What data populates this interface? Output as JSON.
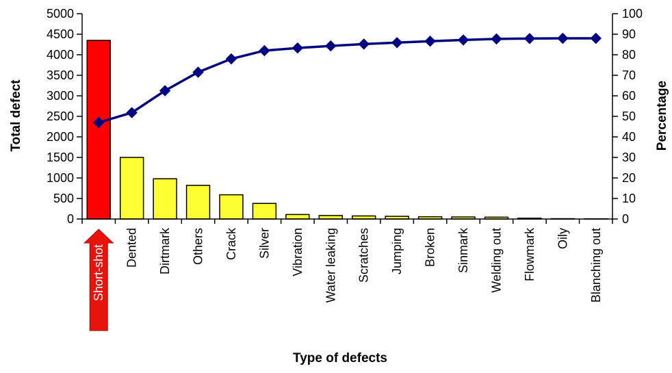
{
  "chart_data": {
    "type": "bar",
    "title": "",
    "xlabel": "Type of defects",
    "ylabel": "Total defect",
    "y2label": "Percentage",
    "ylim": [
      0,
      5000
    ],
    "y2lim": [
      0,
      100
    ],
    "yticks": [
      "0",
      "500",
      "1000",
      "1500",
      "2000",
      "2500",
      "3000",
      "3500",
      "4000",
      "4500",
      "5000"
    ],
    "y2ticks": [
      "0",
      "10",
      "20",
      "30",
      "40",
      "50",
      "60",
      "70",
      "80",
      "90",
      "100"
    ],
    "grid": false,
    "legend": "none",
    "categories": [
      "Short-shot",
      "Dented",
      "Dirtmark",
      "Others",
      "Crack",
      "Silver",
      "Vibration",
      "Water leaking",
      "Scratches",
      "Jumping",
      "Broken",
      "Sinmark",
      "Welding out",
      "Flowmark",
      "Oily",
      "Blanching out"
    ],
    "series": [
      {
        "type": "bar",
        "values": [
          4350,
          1500,
          980,
          820,
          590,
          380,
          110,
          85,
          75,
          65,
          55,
          50,
          45,
          20,
          8,
          5
        ],
        "color": "#ffff33",
        "highlight_color": "#ff0000"
      },
      {
        "type": "line",
        "axis": "right",
        "values": [
          47,
          51.8,
          62.5,
          71.5,
          78,
          82,
          83.3,
          84.3,
          85.2,
          85.9,
          86.6,
          87.2,
          87.7,
          87.9,
          88,
          88
        ],
        "color": "#000080"
      }
    ],
    "highlight_label": "Short-shot",
    "highlight_arrow_color": "#e8140c"
  }
}
